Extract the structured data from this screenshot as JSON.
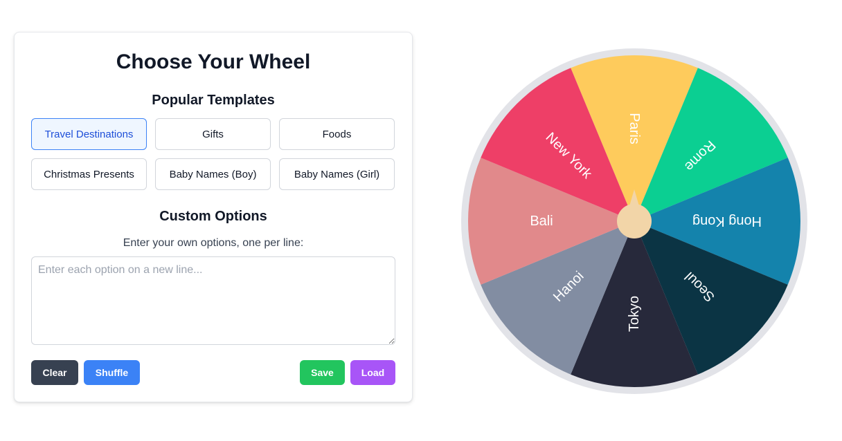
{
  "panel": {
    "title": "Choose Your Wheel",
    "templates_heading": "Popular Templates",
    "templates": [
      {
        "label": "Travel Destinations",
        "active": true
      },
      {
        "label": "Gifts",
        "active": false
      },
      {
        "label": "Foods",
        "active": false
      },
      {
        "label": "Christmas Presents",
        "active": false
      },
      {
        "label": "Baby Names (Boy)",
        "active": false
      },
      {
        "label": "Baby Names (Girl)",
        "active": false
      }
    ],
    "custom_heading": "Custom Options",
    "instructions": "Enter your own options, one per line:",
    "options_input": {
      "value": "",
      "placeholder": "Enter each option on a new line..."
    },
    "buttons": {
      "clear": "Clear",
      "shuffle": "Shuffle",
      "save": "Save",
      "load": "Load"
    }
  },
  "wheel": {
    "rim_color": "#e2e3e8",
    "hub_color": "#f2d5a8",
    "segments": [
      {
        "label": "Paris",
        "color": "#fecb5c"
      },
      {
        "label": "Rome",
        "color": "#0bcf92"
      },
      {
        "label": "Hong Kong",
        "color": "#1483ac"
      },
      {
        "label": "Seoul",
        "color": "#0b3444"
      },
      {
        "label": "Tokyo",
        "color": "#27293b"
      },
      {
        "label": "Hanoi",
        "color": "#828da2"
      },
      {
        "label": "Bali",
        "color": "#e1898b"
      },
      {
        "label": "New York",
        "color": "#ee3f67"
      }
    ]
  }
}
